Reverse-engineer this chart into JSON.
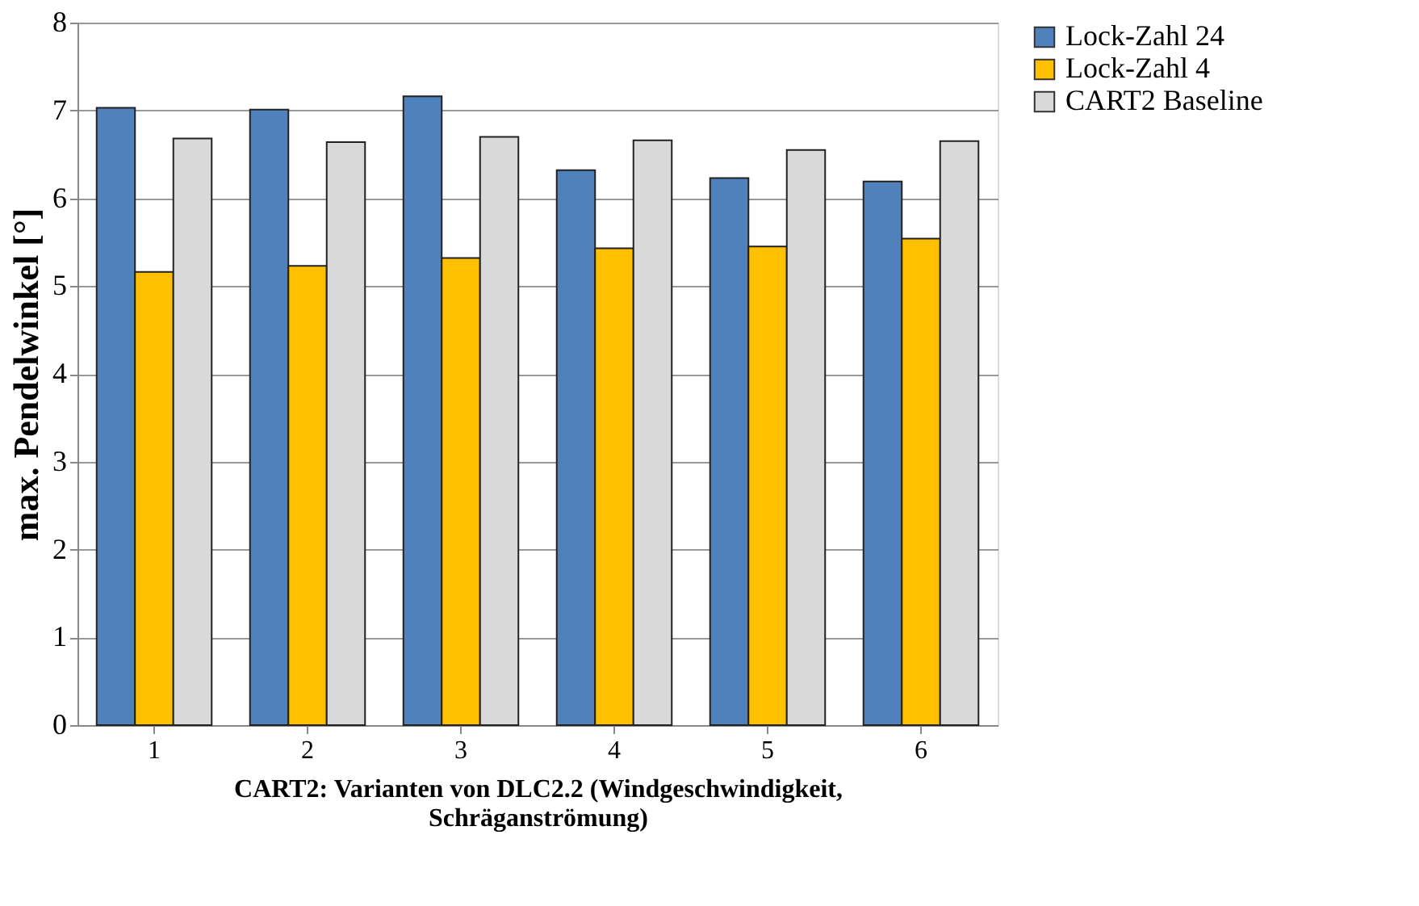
{
  "chart_data": {
    "type": "bar",
    "categories": [
      "1",
      "2",
      "3",
      "4",
      "5",
      "6"
    ],
    "xlabel": "CART2: Varianten von DLC2.2 (Windgeschwindigkeit, Schräganströmung)",
    "ylabel": "max. Pendelwinkel [°]",
    "series": [
      {
        "name": "Lock-Zahl 24",
        "color": "#4f81bd",
        "values": [
          7.03,
          7.01,
          7.16,
          6.32,
          6.23,
          6.19
        ]
      },
      {
        "name": "Lock-Zahl 4",
        "color": "#ffc000",
        "values": [
          5.16,
          5.23,
          5.32,
          5.43,
          5.45,
          5.54
        ]
      },
      {
        "name": "CART2 Baseline",
        "color": "#d9d9d9",
        "values": [
          6.68,
          6.64,
          6.7,
          6.66,
          6.55,
          6.65
        ]
      }
    ],
    "ylim": [
      0,
      8
    ],
    "yticks": [
      0,
      1,
      2,
      3,
      4,
      5,
      6,
      7,
      8
    ],
    "grid": "y",
    "legend": "top right"
  }
}
